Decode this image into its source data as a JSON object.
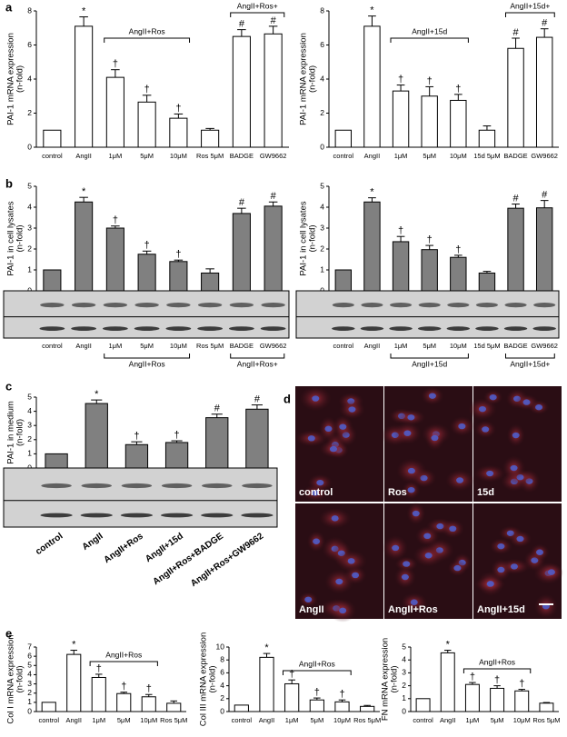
{
  "panel_labels": [
    "a",
    "b",
    "c",
    "d",
    "e"
  ],
  "chart_data": [
    {
      "type": "bar",
      "y_label": [
        "PAI-1 mRNA expression",
        "(n-fold)"
      ],
      "categories": [
        "control",
        "AngII",
        "1μM",
        "5μM",
        "10μM",
        "Ros 5μM",
        "BADGE",
        "GW9662"
      ],
      "values": [
        1,
        7.1,
        4.1,
        2.65,
        1.7,
        1.0,
        6.5,
        6.65
      ],
      "errors": [
        null,
        0.55,
        0.45,
        0.4,
        0.25,
        0.1,
        0.4,
        0.45
      ],
      "markers": [
        null,
        "*",
        "†",
        "†",
        "†",
        null,
        "#",
        "#"
      ],
      "color": "#ffffff",
      "ylim": [
        0,
        8
      ],
      "yticks": [
        0,
        2,
        4,
        6,
        8
      ],
      "brackets": [
        {
          "label": "AngII+Ros",
          "span": [
            "1μM",
            "10μM"
          ]
        },
        {
          "label": "AngII+Ros+",
          "span": [
            "BADGE",
            "GW9662"
          ]
        }
      ]
    },
    {
      "type": "bar",
      "y_label": [
        "PAI-1 mRNA expression",
        "(n-fold)"
      ],
      "categories": [
        "control",
        "AngII",
        "1μM",
        "5μM",
        "10μM",
        "15d 5μM",
        "BADGE",
        "GW9662"
      ],
      "values": [
        1,
        7.1,
        3.3,
        3.0,
        2.75,
        1.0,
        5.8,
        6.45
      ],
      "errors": [
        null,
        0.6,
        0.35,
        0.55,
        0.35,
        0.25,
        0.6,
        0.5
      ],
      "markers": [
        null,
        "*",
        "†",
        "†",
        "†",
        null,
        "#",
        "#"
      ],
      "color": "#ffffff",
      "ylim": [
        0,
        8
      ],
      "yticks": [
        0,
        2,
        4,
        6,
        8
      ],
      "brackets": [
        {
          "label": "AngII+15d",
          "span": [
            "1μM",
            "10μM"
          ]
        },
        {
          "label": "AngII+15d+",
          "span": [
            "BADGE",
            "GW9662"
          ]
        }
      ]
    },
    {
      "type": "bar",
      "y_label": [
        "PAI-1 in cell lysates",
        "(n-fold)"
      ],
      "categories": [
        "control",
        "AngII",
        "1μM",
        "5μM",
        "10μM",
        "Ros 5μM",
        "BADGE",
        "GW9662"
      ],
      "values": [
        1,
        4.25,
        3.0,
        1.75,
        1.4,
        0.85,
        3.7,
        4.05
      ],
      "errors": [
        null,
        0.22,
        0.1,
        0.15,
        0.07,
        0.2,
        0.25,
        0.2
      ],
      "markers": [
        null,
        "*",
        "†",
        "†",
        "†",
        null,
        "#",
        "#"
      ],
      "color": "#808080",
      "ylim": [
        0,
        5
      ],
      "yticks": [
        0,
        1,
        2,
        3,
        4,
        5
      ],
      "blot": true,
      "brackets": [
        {
          "label": "AngII+Ros",
          "span": [
            "1μM",
            "10μM"
          ]
        },
        {
          "label": "AngII+Ros+",
          "span": [
            "BADGE",
            "GW9662"
          ]
        }
      ]
    },
    {
      "type": "bar",
      "y_label": [
        "PAI-1 in cell lysates",
        "(n-fold)"
      ],
      "categories": [
        "control",
        "AngII",
        "1μM",
        "5μM",
        "10μM",
        "15d 5μM",
        "BADGE",
        "GW9662"
      ],
      "values": [
        1,
        4.25,
        2.35,
        1.97,
        1.6,
        0.85,
        3.95,
        3.97
      ],
      "errors": [
        null,
        0.2,
        0.25,
        0.2,
        0.1,
        0.08,
        0.2,
        0.35
      ],
      "markers": [
        null,
        "*",
        "†",
        "†",
        "†",
        null,
        "#",
        "#"
      ],
      "color": "#808080",
      "ylim": [
        0,
        5
      ],
      "yticks": [
        0,
        1,
        2,
        3,
        4,
        5
      ],
      "blot": true,
      "brackets": [
        {
          "label": "AngII+15d",
          "span": [
            "1μM",
            "10μM"
          ]
        },
        {
          "label": "AngII+15d+",
          "span": [
            "BADGE",
            "GW9662"
          ]
        }
      ]
    },
    {
      "type": "bar",
      "y_label": [
        "PAI-1 in medium",
        "(n-fold)"
      ],
      "categories": [
        "control",
        "AngII",
        "AngII+Ros",
        "AngII+15d",
        "AngII+Ros+BADGE",
        "AngII+Ros+GW9662"
      ],
      "values": [
        1,
        4.55,
        1.65,
        1.8,
        3.55,
        4.15
      ],
      "errors": [
        null,
        0.25,
        0.2,
        0.12,
        0.25,
        0.3
      ],
      "markers": [
        null,
        "*",
        "†",
        "†",
        "#",
        "#"
      ],
      "color": "#808080",
      "ylim": [
        0,
        5
      ],
      "yticks": [
        0,
        1,
        2,
        3,
        4,
        5
      ],
      "blot": true
    },
    {
      "type": "bar",
      "y_label": [
        "Col I mRNA expression",
        "(n-fold)"
      ],
      "categories": [
        "control",
        "AngII",
        "1μM",
        "5μM",
        "10μM",
        "Ros 5μM"
      ],
      "values": [
        1,
        6.2,
        3.7,
        1.95,
        1.6,
        0.9
      ],
      "errors": [
        null,
        0.45,
        0.35,
        0.15,
        0.25,
        0.25
      ],
      "markers": [
        null,
        "*",
        "†",
        "†",
        "†",
        null
      ],
      "color": "#ffffff",
      "ylim": [
        0,
        7
      ],
      "yticks": [
        0,
        1,
        2,
        3,
        4,
        5,
        6,
        7
      ],
      "brackets": [
        {
          "label": "AngII+Ros",
          "span": [
            "1μM",
            "10μM"
          ]
        }
      ]
    },
    {
      "type": "bar",
      "y_label": [
        "Col III mRNA expression",
        "(n-fold)"
      ],
      "categories": [
        "control",
        "AngII",
        "1μM",
        "5μM",
        "10μM",
        "Ros 5μM"
      ],
      "values": [
        1,
        8.4,
        4.3,
        1.8,
        1.5,
        0.8
      ],
      "errors": [
        null,
        0.6,
        0.6,
        0.3,
        0.3,
        0.15
      ],
      "markers": [
        null,
        "*",
        "†",
        "†",
        "†",
        null
      ],
      "color": "#ffffff",
      "ylim": [
        0,
        10
      ],
      "yticks": [
        0,
        2,
        4,
        6,
        8,
        10
      ],
      "brackets": [
        {
          "label": "AngII+Ros",
          "span": [
            "1μM",
            "10μM"
          ]
        }
      ]
    },
    {
      "type": "bar",
      "y_label": [
        "FN mRNA expression",
        "(n-fold)"
      ],
      "categories": [
        "control",
        "AngII",
        "1μM",
        "5μM",
        "10μM",
        "Ros 5μM"
      ],
      "values": [
        1,
        4.55,
        2.1,
        1.8,
        1.6,
        0.65
      ],
      "errors": [
        null,
        0.2,
        0.15,
        0.2,
        0.12,
        0.05
      ],
      "markers": [
        null,
        "*",
        "†",
        "†",
        "†",
        null
      ],
      "color": "#ffffff",
      "ylim": [
        0,
        5
      ],
      "yticks": [
        0,
        1,
        2,
        3,
        4,
        5
      ],
      "brackets": [
        {
          "label": "AngII+Ros",
          "span": [
            "1μM",
            "10μM"
          ]
        }
      ]
    }
  ],
  "micrographs": {
    "labels": [
      "control",
      "Ros",
      "15d",
      "AngII",
      "AngII+Ros",
      "AngII+15d"
    ]
  }
}
